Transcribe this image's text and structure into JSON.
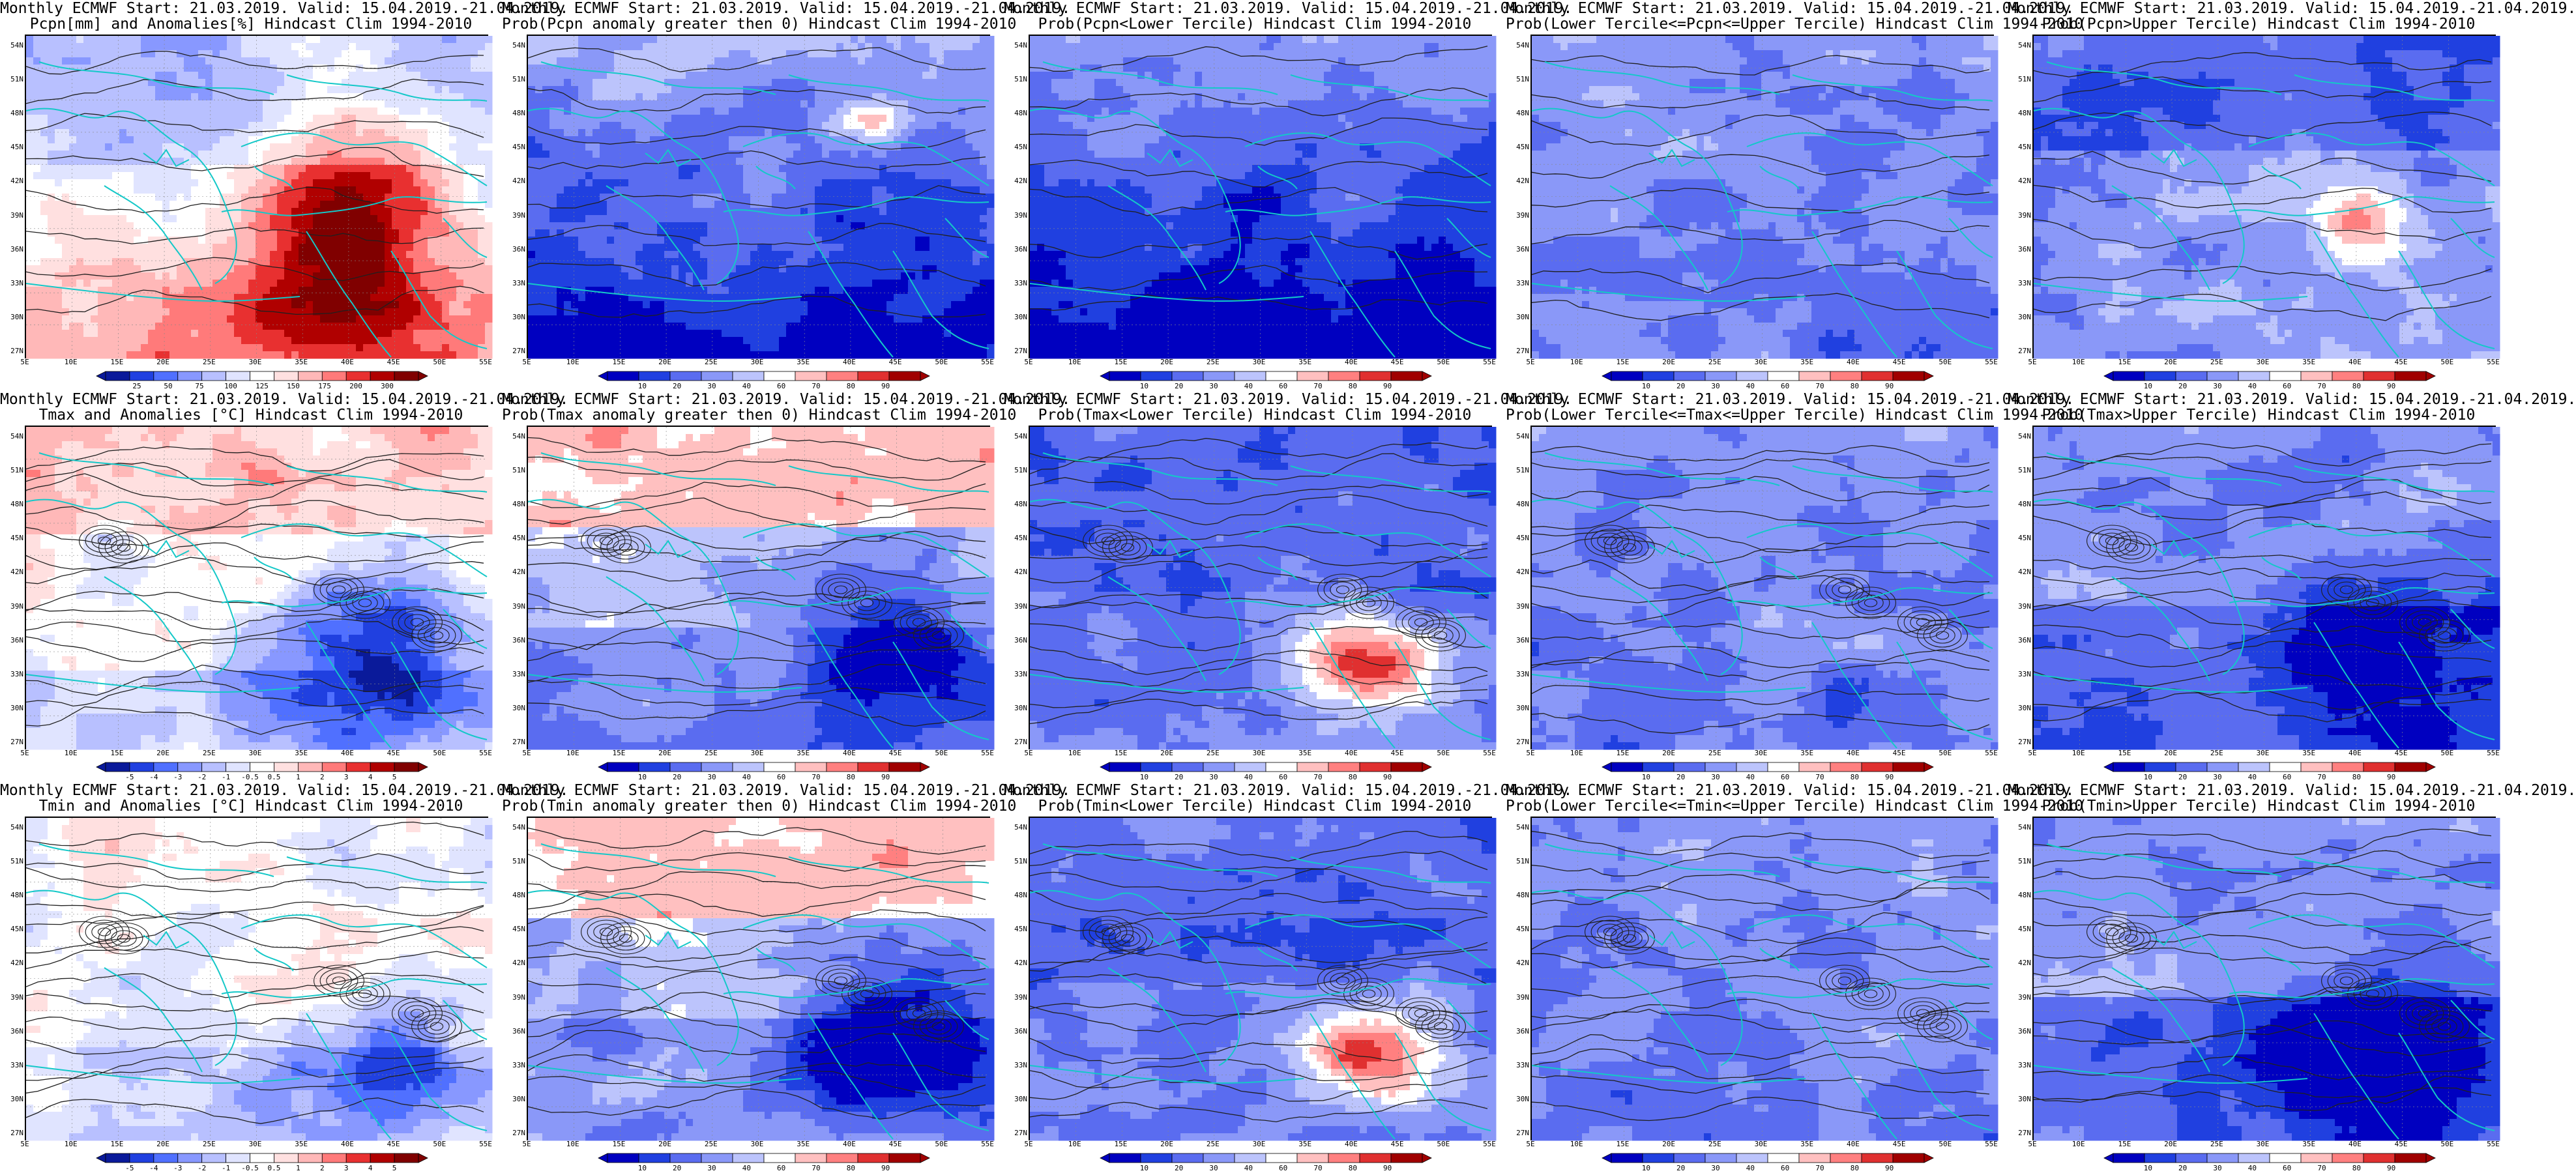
{
  "lat_labels": [
    "54N",
    "51N",
    "48N",
    "45N",
    "42N",
    "39N",
    "36N",
    "33N",
    "30N",
    "27N"
  ],
  "lon_labels": [
    "5E",
    "10E",
    "15E",
    "20E",
    "25E",
    "30E",
    "35E",
    "40E",
    "45E",
    "50E",
    "55E"
  ],
  "palettes": {
    "anom": [
      "#0a1a9a",
      "#2040e0",
      "#5070ff",
      "#8898ff",
      "#b8c0ff",
      "#e0e4ff",
      "#ffffff",
      "#ffe0e0",
      "#ffb8b8",
      "#ff7a7a",
      "#e83030",
      "#b00000",
      "#800000"
    ],
    "prob": [
      "#0000c0",
      "#2040e0",
      "#5a6cf0",
      "#8a98f8",
      "#bcc4fc",
      "#ffffff",
      "#ffc0c0",
      "#ff8080",
      "#e03030",
      "#a00000"
    ]
  },
  "rows": [
    {
      "panels": [
        {
          "line1": "Monthly ECMWF Start: 21.03.2019. Valid: 15.04.2019.-21.04.2019.",
          "line2": "Pcpn[mm] and Anomalies[%] Hindcast Clim 1994-2010",
          "kind": "pcpn_anom",
          "cbar_palette": "anom",
          "cbar_labels": [
            "25",
            "50",
            "75",
            "100",
            "125",
            "150",
            "175",
            "200",
            "300"
          ]
        },
        {
          "line1": "Monthly ECMWF Start: 21.03.2019. Valid: 15.04.2019.-21.04.2019.",
          "line2": "Prob(Pcpn anomaly greater then 0) Hindcast Clim 1994-2010",
          "kind": "prob_low",
          "cbar_palette": "prob",
          "cbar_labels": [
            "10",
            "20",
            "30",
            "40",
            "60",
            "70",
            "80",
            "90"
          ]
        },
        {
          "line1": "Monthly ECMWF Start: 21.03.2019. Valid: 15.04.2019.-21.04.2019.",
          "line2": "Prob(Pcpn<Lower Tercile) Hindcast Clim 1994-2010",
          "kind": "prob_verylow",
          "cbar_palette": "prob",
          "cbar_labels": [
            "10",
            "20",
            "30",
            "40",
            "60",
            "70",
            "80",
            "90"
          ]
        },
        {
          "line1": "Monthly ECMWF Start: 21.03.2019. Valid: 15.04.2019.-21.04.2019.",
          "line2": "Prob(Lower Tercile<=Pcpn<=Upper Tercile) Hindcast Clim 1994-2010",
          "kind": "prob_mid",
          "cbar_palette": "prob",
          "cbar_labels": [
            "10",
            "20",
            "30",
            "40",
            "60",
            "70",
            "80",
            "90"
          ]
        },
        {
          "line1": "Monthly ECMWF Start: 21.03.2019. Valid: 15.04.2019.-21.04.2019.",
          "line2": "Prob(Pcpn>Upper Tercile) Hindcast Clim 1994-2010",
          "kind": "prob_low_red",
          "cbar_palette": "prob",
          "cbar_labels": [
            "10",
            "20",
            "30",
            "40",
            "60",
            "70",
            "80",
            "90"
          ]
        }
      ]
    },
    {
      "panels": [
        {
          "line1": "Monthly ECMWF Start: 21.03.2019. Valid: 15.04.2019.-21.04.2019.",
          "line2": "Tmax and Anomalies [°C] Hindcast Clim 1994-2010",
          "kind": "t_anom",
          "cbar_palette": "anom",
          "cbar_labels": [
            "-5",
            "-4",
            "-3",
            "-2",
            "-1",
            "-0.5",
            "0.5",
            "1",
            "2",
            "3",
            "4",
            "5"
          ]
        },
        {
          "line1": "Monthly ECMWF Start: 21.03.2019. Valid: 15.04.2019.-21.04.2019.",
          "line2": "Prob(Tmax anomaly greater then 0) Hindcast Clim 1994-2010",
          "kind": "prob_tgt",
          "cbar_palette": "prob",
          "cbar_labels": [
            "10",
            "20",
            "30",
            "40",
            "60",
            "70",
            "80",
            "90"
          ]
        },
        {
          "line1": "Monthly ECMWF Start: 21.03.2019. Valid: 15.04.2019.-21.04.2019.",
          "line2": "Prob(Tmax<Lower Tercile) Hindcast Clim 1994-2010",
          "kind": "prob_tlow",
          "cbar_palette": "prob",
          "cbar_labels": [
            "10",
            "20",
            "30",
            "40",
            "60",
            "70",
            "80",
            "90"
          ]
        },
        {
          "line1": "Monthly ECMWF Start: 21.03.2019. Valid: 15.04.2019.-21.04.2019.",
          "line2": "Prob(Lower Tercile<=Tmax<=Upper Tercile) Hindcast Clim 1994-2010",
          "kind": "prob_mid",
          "cbar_palette": "prob",
          "cbar_labels": [
            "10",
            "20",
            "30",
            "40",
            "60",
            "70",
            "80",
            "90"
          ]
        },
        {
          "line1": "Monthly ECMWF Start: 21.03.2019. Valid: 15.04.2019.-21.04.2019.",
          "line2": "Prob(Tmax>Upper Tercile) Hindcast Clim 1994-2010",
          "kind": "prob_tup",
          "cbar_palette": "prob",
          "cbar_labels": [
            "10",
            "20",
            "30",
            "40",
            "60",
            "70",
            "80",
            "90"
          ]
        }
      ]
    },
    {
      "panels": [
        {
          "line1": "Monthly ECMWF Start: 21.03.2019. Valid: 15.04.2019.-21.04.2019.",
          "line2": "Tmin and Anomalies [°C] Hindcast Clim 1994-2010",
          "kind": "tmin_anom",
          "cbar_palette": "anom",
          "cbar_labels": [
            "-5",
            "-4",
            "-3",
            "-2",
            "-1",
            "-0.5",
            "0.5",
            "1",
            "2",
            "3",
            "4",
            "5"
          ]
        },
        {
          "line1": "Monthly ECMWF Start: 21.03.2019. Valid: 15.04.2019.-21.04.2019.",
          "line2": "Prob(Tmin anomaly greater then 0) Hindcast Clim 1994-2010",
          "kind": "prob_tgt",
          "cbar_palette": "prob",
          "cbar_labels": [
            "10",
            "20",
            "30",
            "40",
            "60",
            "70",
            "80",
            "90"
          ]
        },
        {
          "line1": "Monthly ECMWF Start: 21.03.2019. Valid: 15.04.2019.-21.04.2019.",
          "line2": "Prob(Tmin<Lower Tercile) Hindcast Clim 1994-2010",
          "kind": "prob_tlow",
          "cbar_palette": "prob",
          "cbar_labels": [
            "10",
            "20",
            "30",
            "40",
            "60",
            "70",
            "80",
            "90"
          ]
        },
        {
          "line1": "Monthly ECMWF Start: 21.03.2019. Valid: 15.04.2019.-21.04.2019.",
          "line2": "Prob(Lower Tercile<=Tmin<=Upper Tercile) Hindcast Clim 1994-2010",
          "kind": "prob_mid",
          "cbar_palette": "prob",
          "cbar_labels": [
            "10",
            "20",
            "30",
            "40",
            "60",
            "70",
            "80",
            "90"
          ]
        },
        {
          "line1": "Monthly ECMWF Start: 21.03.2019. Valid: 15.04.2019.-21.04.2019.",
          "line2": "Prob(Tmin>Upper Tercile) Hindcast Clim 1994-2010",
          "kind": "prob_tup",
          "cbar_palette": "prob",
          "cbar_labels": [
            "10",
            "20",
            "30",
            "40",
            "60",
            "70",
            "80",
            "90"
          ]
        }
      ]
    }
  ]
}
